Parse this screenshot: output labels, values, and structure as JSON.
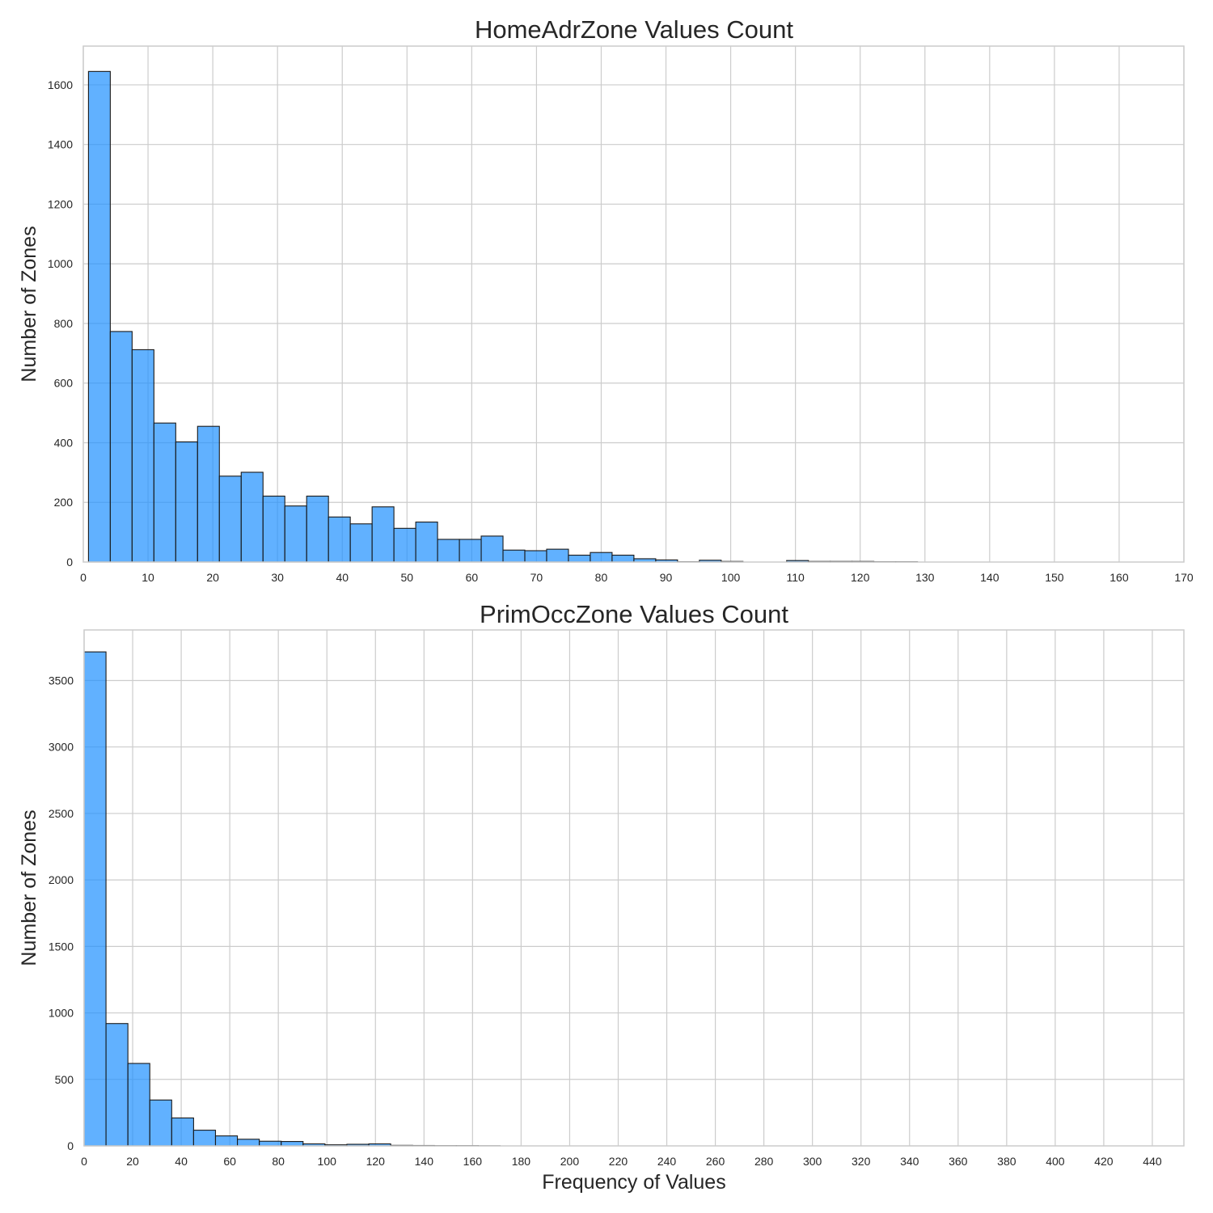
{
  "chart_data": [
    {
      "type": "bar",
      "title": "HomeAdrZone Values Count",
      "xlabel": "",
      "ylabel": "Number of Zones",
      "xlim": [
        0,
        170
      ],
      "ylim": [
        0,
        1730
      ],
      "xticks": [
        0,
        10,
        20,
        30,
        40,
        50,
        60,
        70,
        80,
        90,
        100,
        110,
        120,
        130,
        140,
        150,
        160,
        170
      ],
      "yticks": [
        0,
        200,
        400,
        600,
        800,
        1000,
        1200,
        1400,
        1600
      ],
      "grid": true,
      "bin_start": 0.8,
      "bin_width": 3.37,
      "values": [
        1645,
        773,
        712,
        466,
        403,
        455,
        288,
        301,
        221,
        188,
        221,
        151,
        128,
        185,
        113,
        134,
        76,
        76,
        87,
        40,
        38,
        43,
        23,
        32,
        23,
        11,
        7,
        1,
        6,
        2,
        0,
        0,
        5,
        2,
        2,
        2,
        1,
        1
      ]
    },
    {
      "type": "bar",
      "title": "PrimOccZone Values Count",
      "xlabel": "Frequency of Values",
      "ylabel": "Number of Zones",
      "xlim": [
        0,
        453
      ],
      "ylim": [
        0,
        3880
      ],
      "xticks": [
        0,
        20,
        40,
        60,
        80,
        100,
        120,
        140,
        160,
        180,
        200,
        220,
        240,
        260,
        280,
        300,
        320,
        340,
        360,
        380,
        400,
        420,
        440
      ],
      "yticks": [
        0,
        500,
        1000,
        1500,
        2000,
        2500,
        3000,
        3500
      ],
      "grid": true,
      "bin_start": 0,
      "bin_width": 9.02,
      "values": [
        3715,
        920,
        620,
        345,
        210,
        118,
        75,
        50,
        35,
        33,
        15,
        8,
        12,
        15,
        4,
        3,
        2,
        2,
        1
      ]
    }
  ]
}
